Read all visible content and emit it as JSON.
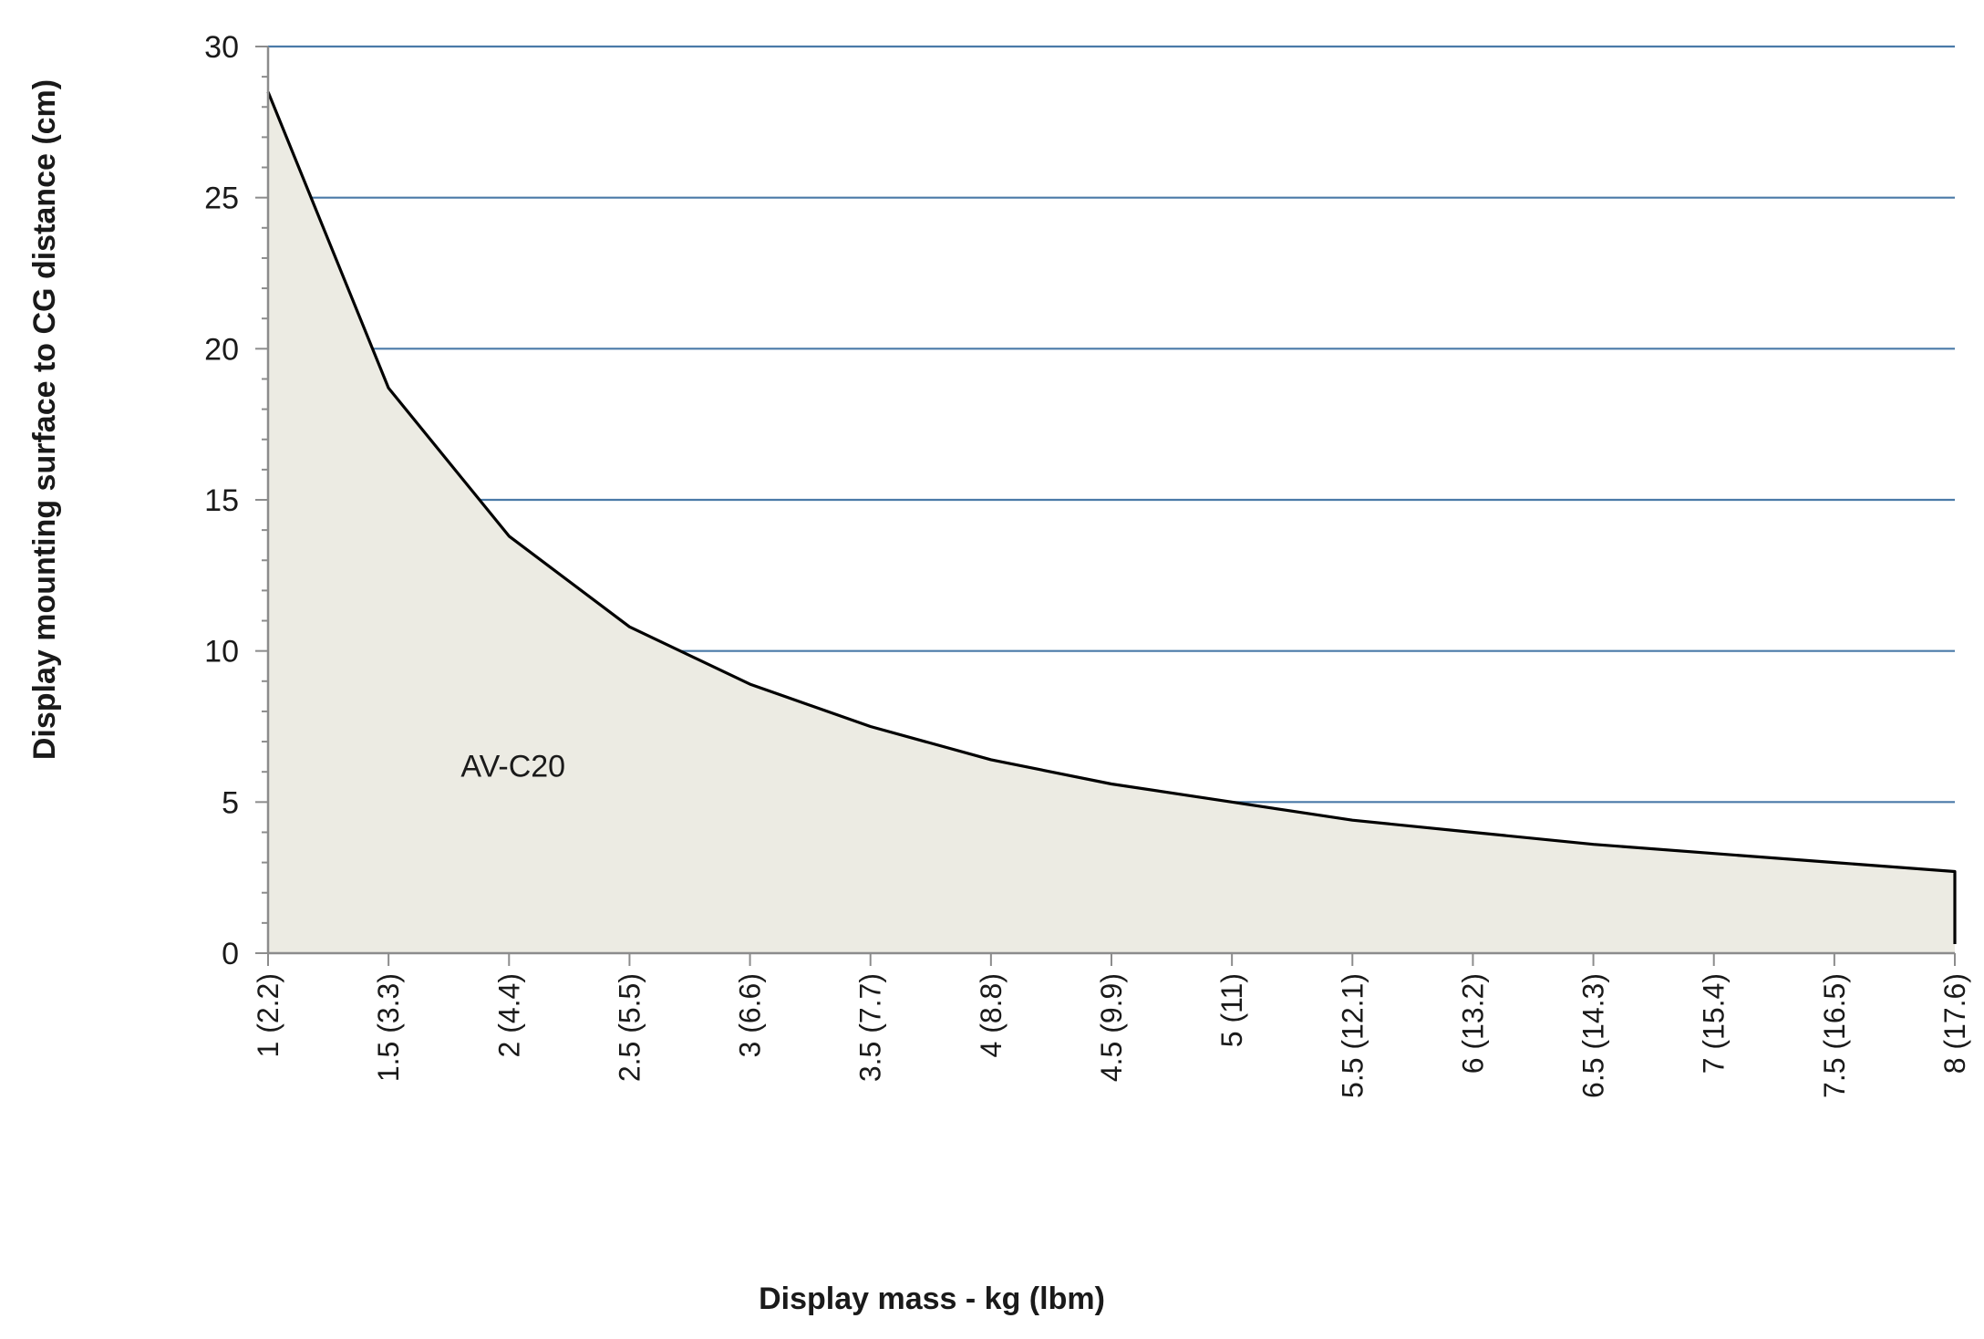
{
  "chart_data": {
    "type": "area",
    "title": "",
    "xlabel": "Display mass - kg (lbm)",
    "ylabel": "Display mounting surface to CG distance (cm)",
    "categories": [
      "1 (2.2)",
      "1.5 (3.3)",
      "2 (4.4)",
      "2.5 (5.5)",
      "3 (6.6)",
      "3.5 (7.7)",
      "4 (8.8)",
      "4.5 (9.9)",
      "5 (11)",
      "5.5 (12.1)",
      "6 (13.2)",
      "6.5 (14.3)",
      "7 (15.4)",
      "7.5 (16.5)",
      "8 (17.6)"
    ],
    "series": [
      {
        "values": [
          28.5,
          18.7,
          13.8,
          10.8,
          8.9,
          7.5,
          6.4,
          5.6,
          5.0,
          4.4,
          4.0,
          3.6,
          3.3,
          3.0,
          2.7
        ]
      }
    ],
    "annotations": [
      {
        "text": "AV-C20",
        "x": "2.5 (5.5)",
        "y": 6.2
      }
    ],
    "ylim": [
      0,
      30
    ],
    "yticks": [
      0,
      5,
      10,
      15,
      20,
      25,
      30
    ],
    "grid": true,
    "legend": "none",
    "colors": {
      "fill": "#ecebe3",
      "line": "#000000",
      "grid": "#4a7aa8",
      "axis": "#8c8c8c"
    }
  }
}
